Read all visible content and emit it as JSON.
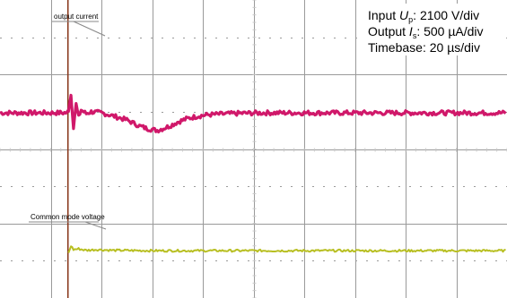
{
  "chart_data": {
    "type": "line",
    "annotations": {
      "output_current": "output current",
      "common_mode": "Common mode voltage"
    },
    "info": {
      "line1_pre": "Input  ",
      "line1_sym": "U",
      "line1_sub": "p",
      "line1_post": ": 2100 V/div",
      "line2_pre": "Output ",
      "line2_sym": "I",
      "line2_sub": "s",
      "line2_post": ": 500 µA/div",
      "line3": "Timebase: 20 µs/div"
    },
    "grid": true,
    "x_divisions": 10,
    "y_divisions": 8,
    "xlim": [
      0,
      200
    ],
    "ylim": [
      -4,
      4
    ],
    "series": [
      {
        "color": "#d0186a",
        "x": [
          0,
          20,
          26.5,
          27,
          28,
          29,
          30,
          31,
          32,
          34,
          36,
          40,
          44,
          50,
          55,
          58,
          62,
          64,
          67,
          70,
          74,
          78,
          82,
          88,
          95,
          105,
          120,
          140,
          160,
          180,
          200
        ],
        "y": [
          0.97,
          0.97,
          0.97,
          1.05,
          1.45,
          0.6,
          1.2,
          0.85,
          1.05,
          0.95,
          1.0,
          0.97,
          0.9,
          0.78,
          0.62,
          0.55,
          0.5,
          0.54,
          0.62,
          0.72,
          0.82,
          0.88,
          0.92,
          0.94,
          0.96,
          0.97,
          0.97,
          0.97,
          0.97,
          0.97,
          0.97
        ]
      },
      {
        "color": "#b8bf22",
        "x": [
          0,
          26.5,
          27,
          28,
          29,
          31,
          34,
          38,
          45,
          60,
          100,
          140,
          200
        ],
        "y": [
          null,
          null,
          -2.8,
          -2.6,
          -2.7,
          -2.68,
          -2.72,
          -2.7,
          -2.72,
          -2.73,
          -2.73,
          -2.73,
          -2.73
        ]
      }
    ],
    "events": [
      {
        "x": 26.8,
        "color": "#8a3a1e"
      }
    ],
    "colors": {
      "grid": "#9a9a9a",
      "background": "#ffffff"
    }
  }
}
